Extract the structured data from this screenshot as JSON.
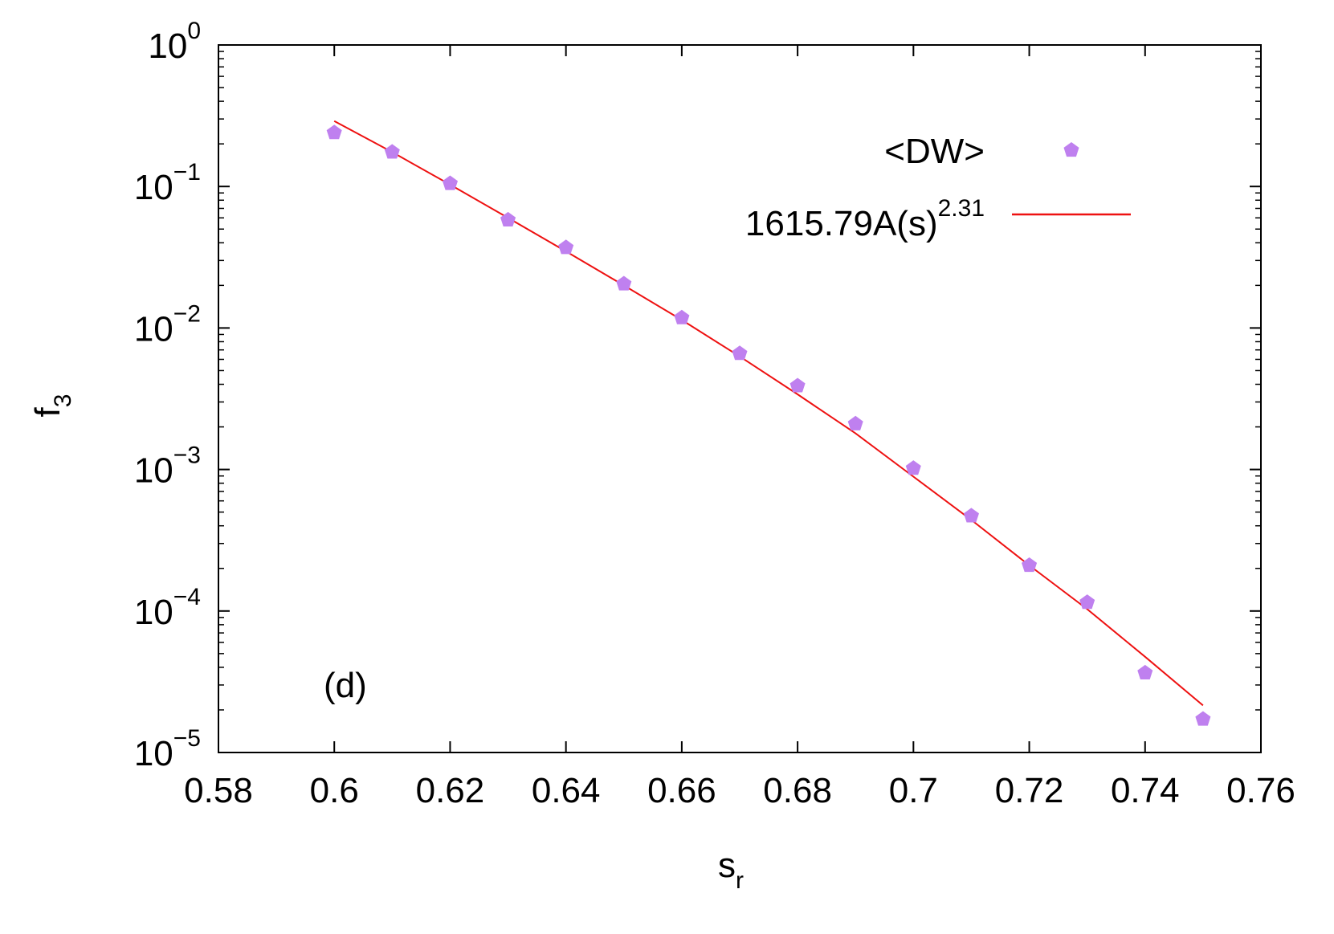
{
  "chart_data": {
    "type": "scatter",
    "xlabel": {
      "base": "s",
      "sub": "r"
    },
    "ylabel": {
      "base": "f",
      "sub": "3"
    },
    "annotation": "(d)",
    "y_scale": "log",
    "xlim": [
      0.58,
      0.76
    ],
    "ylim": [
      1e-05,
      1
    ],
    "x_ticks": [
      0.58,
      0.6,
      0.62,
      0.64,
      0.66,
      0.68,
      0.7,
      0.72,
      0.74,
      0.76
    ],
    "x_tick_labels": [
      "0.58",
      "0.6",
      "0.62",
      "0.64",
      "0.66",
      "0.68",
      "0.7",
      "0.72",
      "0.74",
      "0.76"
    ],
    "y_ticks": [
      1,
      0.1,
      0.01,
      0.001,
      0.0001,
      1e-05
    ],
    "y_tick_labels": [
      {
        "base": "10",
        "exp": "0"
      },
      {
        "base": "10",
        "exp": "−1"
      },
      {
        "base": "10",
        "exp": "−2"
      },
      {
        "base": "10",
        "exp": "−3"
      },
      {
        "base": "10",
        "exp": "−4"
      },
      {
        "base": "10",
        "exp": "−5"
      }
    ],
    "legend_position": "top-right",
    "series": [
      {
        "name": "<DW>",
        "kind": "points",
        "marker": "pentagon",
        "color": "#bf80ef",
        "x": [
          0.6,
          0.61,
          0.62,
          0.63,
          0.64,
          0.65,
          0.66,
          0.67,
          0.68,
          0.69,
          0.7,
          0.71,
          0.72,
          0.73,
          0.74,
          0.75
        ],
        "y": [
          0.24,
          0.175,
          0.105,
          0.058,
          0.037,
          0.0205,
          0.0118,
          0.0066,
          0.0039,
          0.0021,
          0.00102,
          0.00047,
          0.00021,
          0.000115,
          3.65e-05,
          1.72e-05
        ]
      },
      {
        "name": {
          "base": "1615.79A(s)",
          "exp": "2.31"
        },
        "kind": "line",
        "color": "#ee1111",
        "x": [
          0.6,
          0.61,
          0.62,
          0.63,
          0.64,
          0.65,
          0.66,
          0.67,
          0.68,
          0.69,
          0.7,
          0.71,
          0.72,
          0.73,
          0.74,
          0.75
        ],
        "y": [
          0.29,
          0.175,
          0.103,
          0.06,
          0.0348,
          0.02,
          0.0114,
          0.0063,
          0.0034,
          0.0018,
          0.00089,
          0.00044,
          0.00021,
          0.000103,
          4.75e-05,
          2.15e-05
        ]
      }
    ]
  }
}
